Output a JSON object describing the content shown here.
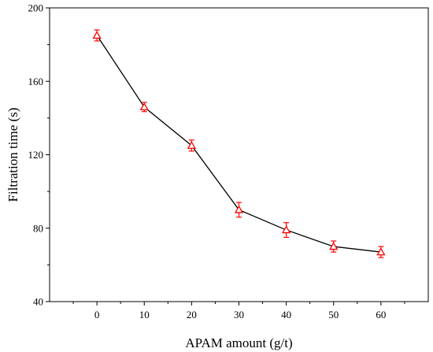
{
  "chart_data": {
    "type": "line",
    "xlabel": "APAM amount (g/t)",
    "ylabel": "Filtration time (s)",
    "xlim": [
      -10,
      70
    ],
    "ylim": [
      40,
      200
    ],
    "x_ticks": [
      0,
      10,
      20,
      30,
      40,
      50,
      60
    ],
    "y_ticks": [
      40,
      80,
      120,
      160,
      200
    ],
    "grid": false,
    "series": [
      {
        "x": [
          0,
          10,
          20,
          30,
          40,
          50,
          60
        ],
        "y": [
          185,
          146,
          125,
          90,
          79,
          70,
          67
        ],
        "error": [
          3,
          2.5,
          3,
          4,
          4,
          3,
          3
        ],
        "marker": "open-triangle",
        "marker_color": "#ff0000",
        "line_color": "#000000"
      }
    ]
  }
}
